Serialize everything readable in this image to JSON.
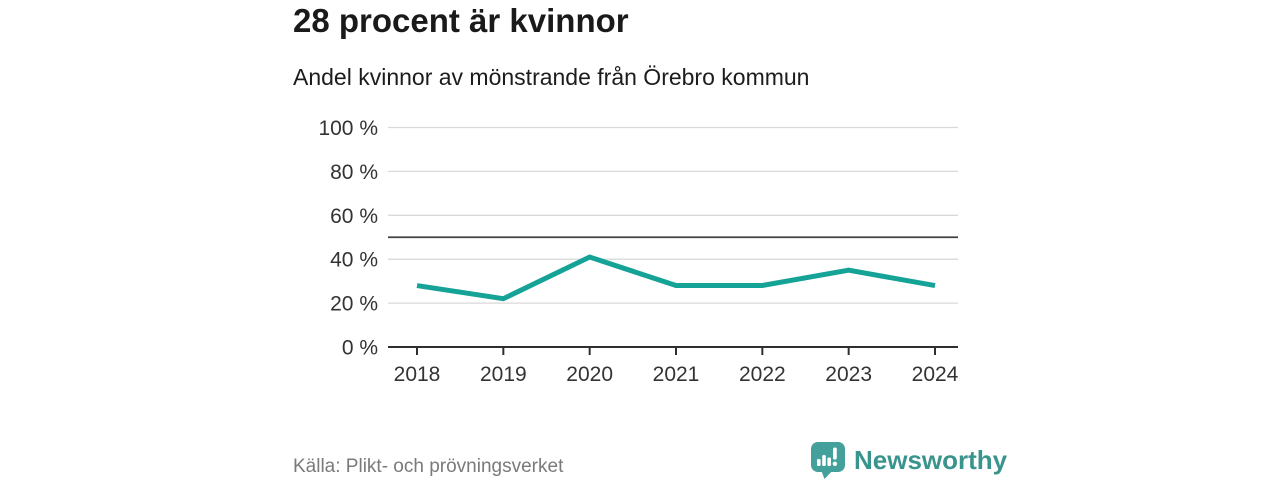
{
  "header": {
    "title": "28 procent är kvinnor",
    "subtitle": "Andel kvinnor av mönstrande från Örebro kommun"
  },
  "chart_data": {
    "type": "line",
    "title": "28 procent är kvinnor",
    "subtitle": "Andel kvinnor av mönstrande från Örebro kommun",
    "x": [
      "2018",
      "2019",
      "2020",
      "2021",
      "2022",
      "2023",
      "2024"
    ],
    "series": [
      {
        "name": "Andel kvinnor av mönstrande",
        "values": [
          28,
          22,
          41,
          28,
          28,
          35,
          28
        ]
      }
    ],
    "ylim": [
      0,
      100
    ],
    "y_ticks": [
      {
        "value": 0,
        "label": "0 %"
      },
      {
        "value": 20,
        "label": "20 %"
      },
      {
        "value": 40,
        "label": "40 %"
      },
      {
        "value": 60,
        "label": "60 %"
      },
      {
        "value": 80,
        "label": "80 %"
      },
      {
        "value": 100,
        "label": "100 %"
      }
    ],
    "reference_line": {
      "value": 50
    },
    "grid": "horizontal",
    "legend": "none"
  },
  "footer": {
    "source": "Källa: Plikt- och prövningsverket",
    "brand": "Newsworthy"
  },
  "colors": {
    "line": "#14a396",
    "grid": "#d9d9d9",
    "reference_line": "#424242",
    "axis": "#2f2f2f",
    "tick_text": "#333333",
    "title_text": "#1a1a1a",
    "source_text": "#7a7a7a",
    "brand_teal": "#3a948e",
    "brand_icon_teal": "#44a09a"
  }
}
